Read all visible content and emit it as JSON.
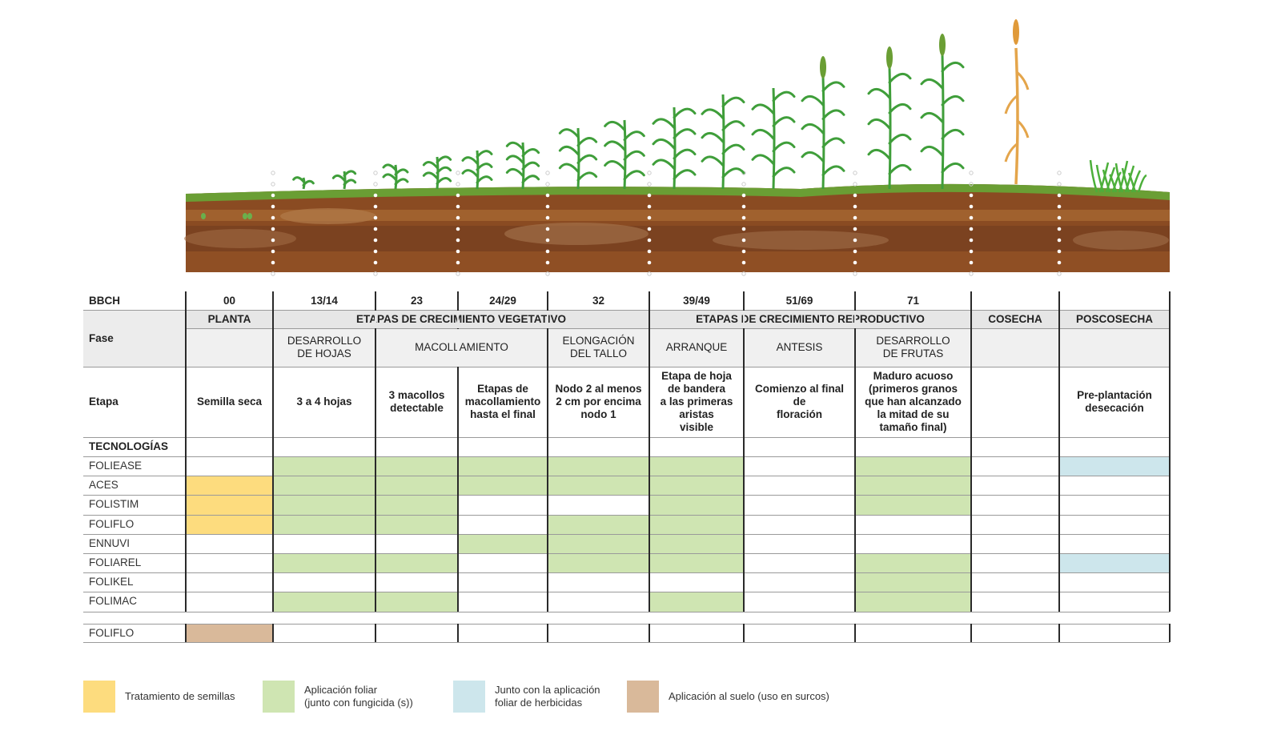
{
  "colors": {
    "seed": "#fddc7e",
    "foliar": "#cfe5b2",
    "herbicide": "#cde6ec",
    "soil": "#d9b99a",
    "header_bg": "#e6e6e6",
    "soil_dark": "#7a4220",
    "grass": "#6fa63a"
  },
  "labels": {
    "bbch": "BBCH",
    "fase": "Fase",
    "etapa": "Etapa",
    "tecnologias": "TECNOLOGÍAS"
  },
  "bbch_codes": [
    "00",
    "13/14",
    "23",
    "24/29",
    "32",
    "39/49",
    "51/69",
    "71",
    "",
    ""
  ],
  "phases": [
    {
      "name": "PLANTA"
    },
    {
      "name": "ETAPAS DE CRECIMIENTO VEGETATIVO"
    },
    {
      "name": "ETAPAS DE CRECIMIENTO REPRODUCTIVO"
    },
    {
      "name": "COSECHA"
    },
    {
      "name": "POSCOSECHA"
    }
  ],
  "subphases": [
    {
      "name": ""
    },
    {
      "name": "DESARROLLO\nDE HOJAS"
    },
    {
      "name": "MACOLLAMIENTO"
    },
    {
      "name": "ELONGACIÓN\nDEL TALLO"
    },
    {
      "name": "ARRANQUE"
    },
    {
      "name": "ANTESIS"
    },
    {
      "name": "DESARROLLO\nDE FRUTAS"
    },
    {
      "name": ""
    },
    {
      "name": ""
    }
  ],
  "stages": [
    "Semilla seca",
    "3 a 4 hojas",
    "3 macollos\ndetectable",
    "Etapas de\nmacollamiento\nhasta el final",
    "Nodo 2 al menos\n2 cm por encima\nnodo 1",
    "Etapa de hoja\nde bandera\na las primeras\naristas\nvisible",
    "Comienzo al final\nde\nfloración",
    "Maduro acuoso\n(primeros granos\nque han alcanzado\nla mitad de su\ntamaño final)",
    "",
    "Pre-plantación\ndesecación"
  ],
  "technologies": [
    {
      "name": "FOLIEASE",
      "cells": [
        "",
        "F",
        "F",
        "F",
        "F",
        "F",
        "",
        "F",
        "",
        "H"
      ]
    },
    {
      "name": "ACES",
      "cells": [
        "S",
        "F",
        "F",
        "F",
        "F",
        "F",
        "",
        "F",
        "",
        ""
      ]
    },
    {
      "name": "FOLISTIM",
      "cells": [
        "S",
        "F",
        "F",
        "",
        "",
        "F",
        "",
        "F",
        "",
        ""
      ]
    },
    {
      "name": "FOLIFLO",
      "cells": [
        "S",
        "F",
        "F",
        "",
        "F",
        "F",
        "",
        "",
        "",
        ""
      ]
    },
    {
      "name": "ENNUVI",
      "cells": [
        "",
        "",
        "",
        "F",
        "F",
        "F",
        "",
        "",
        "",
        ""
      ]
    },
    {
      "name": "FOLIAREL",
      "cells": [
        "",
        "F",
        "F",
        "",
        "F",
        "F",
        "",
        "F",
        "",
        "H"
      ]
    },
    {
      "name": "FOLIKEL",
      "cells": [
        "",
        "",
        "",
        "",
        "",
        "",
        "",
        "F",
        "",
        ""
      ]
    },
    {
      "name": "FOLIMAC",
      "cells": [
        "",
        "F",
        "F",
        "",
        "",
        "F",
        "",
        "F",
        "",
        ""
      ]
    }
  ],
  "soil_row": {
    "name": "FOLIFLO",
    "cells": [
      "T",
      "",
      "",
      "",
      "",
      "",
      "",
      "",
      "",
      ""
    ]
  },
  "legend": [
    {
      "key": "S",
      "label": "Tratamiento de semillas"
    },
    {
      "key": "F",
      "label": "Aplicación foliar\n(junto con fungicida (s))"
    },
    {
      "key": "H",
      "label": "Junto con la aplicación\nfoliar de herbicidas"
    },
    {
      "key": "T",
      "label": "Aplicación al suelo (uso en surcos)"
    }
  ]
}
